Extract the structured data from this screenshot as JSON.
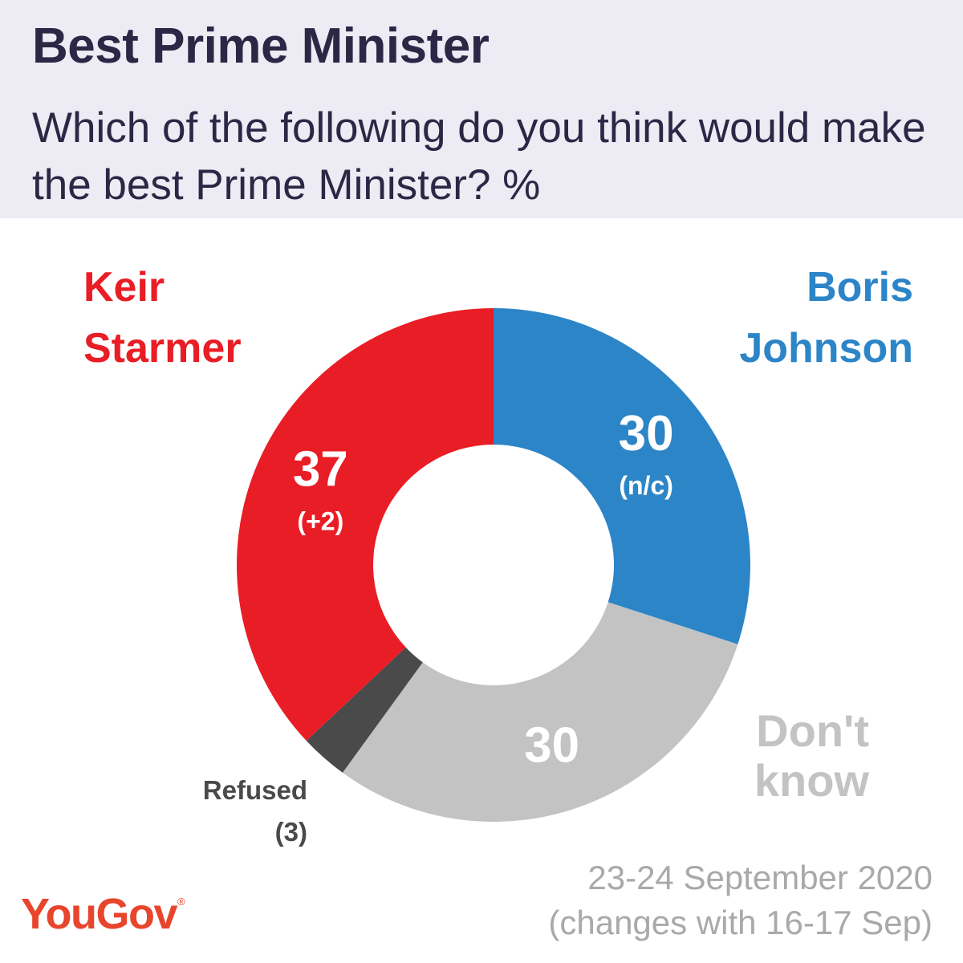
{
  "header": {
    "title": "Best Prime Minister",
    "subtitle": "Which of the following do you think would make the best Prime Minister? %"
  },
  "chart_data": {
    "type": "pie",
    "variant": "donut",
    "start": "top, clockwise",
    "series": [
      {
        "name": "Boris Johnson",
        "label_lines": [
          "Boris",
          "Johnson"
        ],
        "value": 30,
        "value_label": "30",
        "change": "(n/c)",
        "color": "#2c85c7",
        "label_color": "#2c85c7"
      },
      {
        "name": "Don't know",
        "label_lines": [
          "Don't",
          "know"
        ],
        "value": 30,
        "value_label": "30",
        "change": "",
        "color": "#c3c3c3",
        "label_color": "#c3c3c3"
      },
      {
        "name": "Refused",
        "label_lines": [
          "Refused"
        ],
        "value": 3,
        "value_label": "",
        "change": "(3)",
        "color": "#4a4a4a",
        "label_color": "#4a4a4a"
      },
      {
        "name": "Keir Starmer",
        "label_lines": [
          "Keir",
          "Starmer"
        ],
        "value": 37,
        "value_label": "37",
        "change": "(+2)",
        "color": "#e91d25",
        "label_color": "#e91d25"
      }
    ]
  },
  "footer": {
    "date_line1": "23-24 September 2020",
    "date_line2": "(changes with 16-17 Sep)",
    "logo": "YouGov",
    "logo_mark": "®"
  },
  "colors": {
    "header_bg": "#edebf3",
    "title": "#2b2745",
    "logo": "#e8452d",
    "footer_text": "#a9a9a9"
  }
}
